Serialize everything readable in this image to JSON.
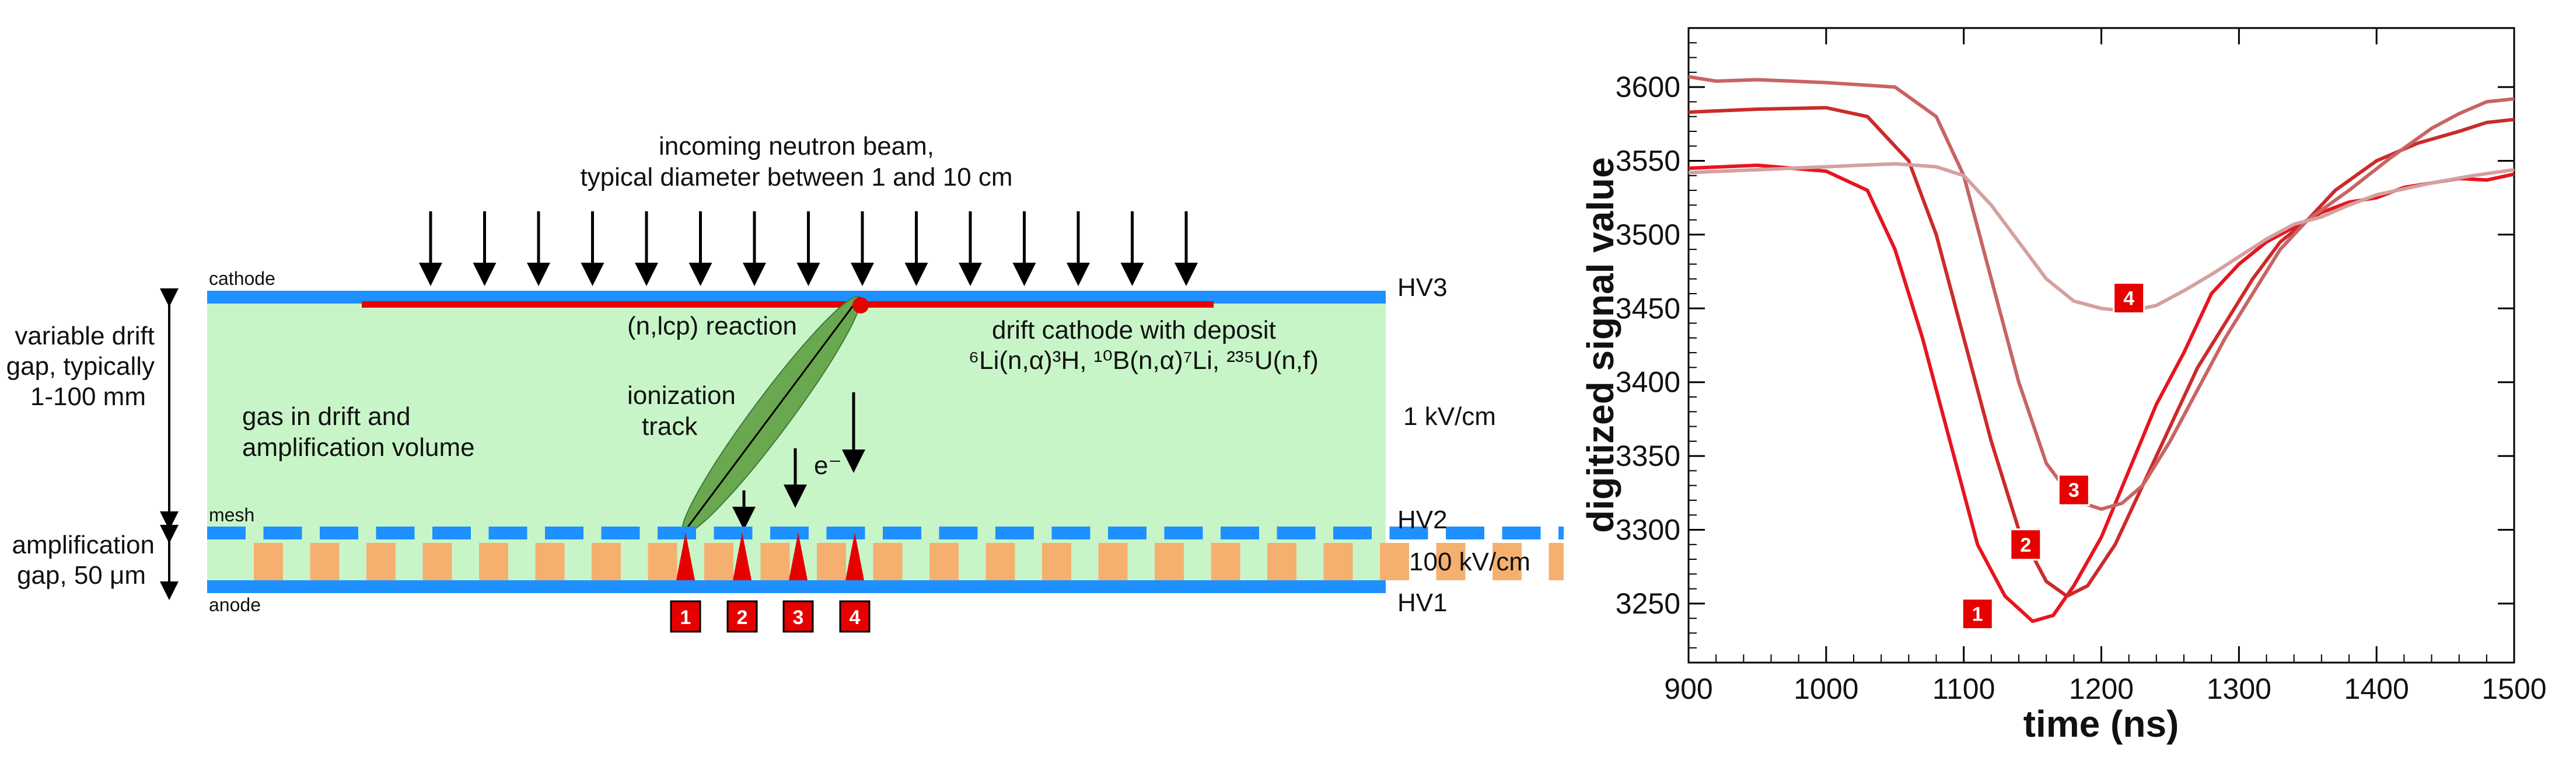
{
  "diagram": {
    "beam_label_line1": "incoming neutron beam,",
    "beam_label_line2": "typical diameter between 1 and 10 cm",
    "cathode_label": "cathode",
    "mesh_label": "mesh",
    "anode_label": "anode",
    "hv3": "HV3",
    "hv2": "HV2",
    "hv1": "HV1",
    "drift_gap_line1": "variable drift",
    "drift_gap_line2": "gap, typically",
    "drift_gap_line3": "1-100 mm",
    "amp_gap_line1": "amplification",
    "amp_gap_line2": "gap, 50 μm",
    "reaction_label": "(n,lcp) reaction",
    "deposit_line1": "drift cathode with deposit",
    "deposit_line2": "⁶Li(n,α)³H, ¹⁰B(n,α)⁷Li, ²³⁵U(n,f)",
    "gas_line1": "gas in drift  and",
    "gas_line2": "amplification volume",
    "track_line1": "ionization",
    "track_line2": "track",
    "electron_label": "e⁻",
    "drift_field": "1 kV/cm",
    "amp_field": "100 kV/cm",
    "strip_markers": [
      "1",
      "2",
      "3",
      "4"
    ],
    "colors": {
      "electrode_blue": "#1e90ff",
      "gas_green": "#c8f5c8",
      "deposit_red": "#e60000",
      "pillar_orange": "#f5b070",
      "track_green": "#6aa84f"
    }
  },
  "chart_data": {
    "type": "line",
    "title": "",
    "xlabel": "time (ns)",
    "ylabel": "digitized signal value",
    "xlim": [
      900,
      1500
    ],
    "ylim": [
      3210,
      3640
    ],
    "xticks": [
      900,
      1000,
      1100,
      1200,
      1300,
      1400,
      1500
    ],
    "yticks": [
      3250,
      3300,
      3350,
      3400,
      3450,
      3500,
      3550,
      3600
    ],
    "grid": false,
    "series": [
      {
        "marker": "1",
        "color": "#e8141e",
        "x": [
          900,
          950,
          1000,
          1030,
          1050,
          1070,
          1090,
          1110,
          1130,
          1150,
          1165,
          1180,
          1200,
          1220,
          1240,
          1260,
          1280,
          1300,
          1320,
          1340,
          1360,
          1380,
          1400,
          1420,
          1440,
          1460,
          1480,
          1500
        ],
        "y": [
          3545,
          3547,
          3543,
          3530,
          3490,
          3430,
          3360,
          3290,
          3255,
          3238,
          3242,
          3262,
          3295,
          3340,
          3385,
          3420,
          3460,
          3480,
          3495,
          3505,
          3515,
          3522,
          3525,
          3532,
          3535,
          3538,
          3537,
          3541
        ]
      },
      {
        "marker": "2",
        "color": "#cc2a2a",
        "x": [
          900,
          950,
          1000,
          1030,
          1060,
          1080,
          1100,
          1120,
          1140,
          1160,
          1175,
          1190,
          1210,
          1230,
          1250,
          1270,
          1290,
          1310,
          1330,
          1350,
          1370,
          1400,
          1430,
          1460,
          1480,
          1500
        ],
        "y": [
          3583,
          3585,
          3586,
          3580,
          3550,
          3500,
          3430,
          3360,
          3300,
          3265,
          3255,
          3262,
          3290,
          3330,
          3370,
          3410,
          3440,
          3470,
          3495,
          3510,
          3530,
          3550,
          3562,
          3570,
          3576,
          3578
        ]
      },
      {
        "marker": "3",
        "color": "#c86464",
        "x": [
          900,
          920,
          950,
          1000,
          1050,
          1080,
          1100,
          1120,
          1140,
          1160,
          1180,
          1200,
          1215,
          1230,
          1250,
          1270,
          1290,
          1310,
          1330,
          1350,
          1380,
          1410,
          1440,
          1460,
          1480,
          1500
        ],
        "y": [
          3607,
          3604,
          3605,
          3603,
          3600,
          3580,
          3540,
          3470,
          3400,
          3345,
          3320,
          3314,
          3318,
          3330,
          3360,
          3395,
          3430,
          3460,
          3490,
          3510,
          3530,
          3552,
          3572,
          3582,
          3590,
          3592
        ]
      },
      {
        "marker": "4",
        "color": "#d4a0a0",
        "x": [
          900,
          950,
          1000,
          1050,
          1080,
          1100,
          1120,
          1140,
          1160,
          1180,
          1200,
          1220,
          1240,
          1260,
          1280,
          1300,
          1320,
          1340,
          1360,
          1380,
          1400,
          1440,
          1470,
          1500
        ],
        "y": [
          3542,
          3544,
          3546,
          3548,
          3546,
          3540,
          3520,
          3495,
          3470,
          3455,
          3450,
          3448,
          3452,
          3462,
          3473,
          3485,
          3497,
          3507,
          3512,
          3520,
          3527,
          3535,
          3540,
          3544
        ]
      }
    ],
    "markers": [
      {
        "label": "1",
        "x": 1110,
        "y": 3243
      },
      {
        "label": "2",
        "x": 1145,
        "y": 3290
      },
      {
        "label": "3",
        "x": 1180,
        "y": 3327
      },
      {
        "label": "4",
        "x": 1220,
        "y": 3457
      }
    ]
  }
}
